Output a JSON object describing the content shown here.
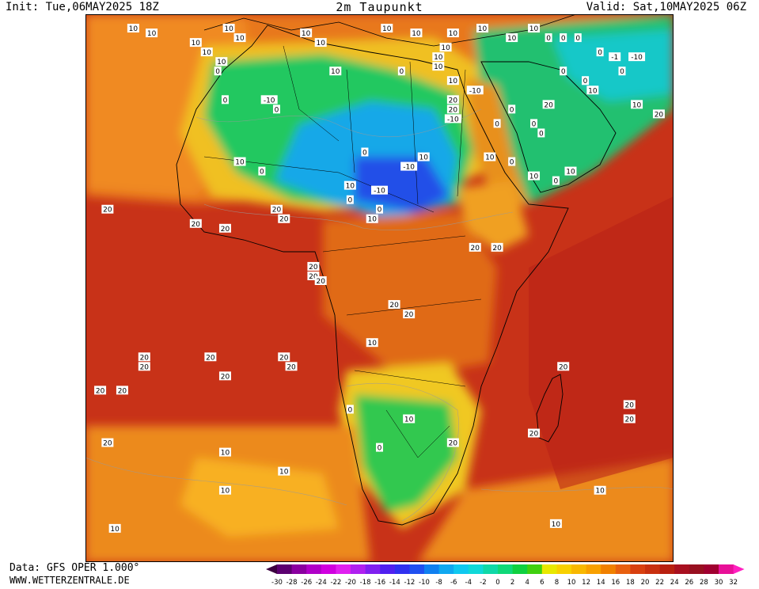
{
  "header": {
    "init": "Init: Tue,06MAY2025 18Z",
    "title": "2m Taupunkt",
    "valid": "Valid: Sat,10MAY2025 06Z"
  },
  "footer": {
    "data_source": "Data: GFS OPER 1.000°",
    "website": "WWW.WETTERZENTRALE.DE"
  },
  "legend": {
    "ticks": [
      "-30",
      "-28",
      "-26",
      "-24",
      "-22",
      "-20",
      "-18",
      "-16",
      "-14",
      "-12",
      "-10",
      "-8",
      "-6",
      "-4",
      "-2",
      "0",
      "2",
      "4",
      "6",
      "8",
      "10",
      "12",
      "14",
      "16",
      "18",
      "20",
      "22",
      "24",
      "26",
      "28",
      "30",
      "32"
    ],
    "colors": [
      "#3c0040",
      "#5c0070",
      "#8a00a0",
      "#b000c8",
      "#d000e0",
      "#e020f0",
      "#b020f0",
      "#8020f0",
      "#5020f0",
      "#3030f0",
      "#2050f0",
      "#1080f0",
      "#10a8f0",
      "#10c8f0",
      "#10d8d8",
      "#10d8a8",
      "#10d878",
      "#10d040",
      "#40d010",
      "#e8e800",
      "#f8d000",
      "#f8b800",
      "#f8a000",
      "#f08000",
      "#e86010",
      "#d84010",
      "#c83010",
      "#b82010",
      "#a81020",
      "#981020",
      "#a00030",
      "#e81098",
      "#ff20c0"
    ]
  },
  "map_labels": [
    {
      "t": "10",
      "lng": -13.5,
      "lat": 37
    },
    {
      "t": "10",
      "lng": -11,
      "lat": 36
    },
    {
      "t": "10",
      "lng": -5,
      "lat": 34
    },
    {
      "t": "10",
      "lng": -0.5,
      "lat": 37
    },
    {
      "t": "10",
      "lng": 1,
      "lat": 35
    },
    {
      "t": "10",
      "lng": -3.5,
      "lat": 32
    },
    {
      "t": "10",
      "lng": -1.5,
      "lat": 30
    },
    {
      "t": "0",
      "lng": -2,
      "lat": 28
    },
    {
      "t": "0",
      "lng": -1,
      "lat": 22
    },
    {
      "t": "-10",
      "lng": 5,
      "lat": 22
    },
    {
      "t": "0",
      "lng": 6,
      "lat": 20
    },
    {
      "t": "10",
      "lng": 14,
      "lat": 28
    },
    {
      "t": "0",
      "lng": 23,
      "lat": 28
    },
    {
      "t": "10",
      "lng": 10,
      "lat": 36
    },
    {
      "t": "10",
      "lng": 12,
      "lat": 34
    },
    {
      "t": "10",
      "lng": 21,
      "lat": 37
    },
    {
      "t": "10",
      "lng": 25,
      "lat": 36
    },
    {
      "t": "10",
      "lng": 34,
      "lat": 37
    },
    {
      "t": "10",
      "lng": 30,
      "lat": 36
    },
    {
      "t": "10",
      "lng": 29,
      "lat": 33
    },
    {
      "t": "10",
      "lng": 28,
      "lat": 31
    },
    {
      "t": "10",
      "lng": 28,
      "lat": 29
    },
    {
      "t": "10",
      "lng": 30,
      "lat": 26
    },
    {
      "t": "10",
      "lng": 38,
      "lat": 35
    },
    {
      "t": "10",
      "lng": 41,
      "lat": 37
    },
    {
      "t": "0",
      "lng": 43,
      "lat": 35
    },
    {
      "t": "0",
      "lng": 45,
      "lat": 35
    },
    {
      "t": "0",
      "lng": 47,
      "lat": 35
    },
    {
      "t": "0",
      "lng": 50,
      "lat": 32
    },
    {
      "t": "-1",
      "lng": 52,
      "lat": 31
    },
    {
      "t": "-10",
      "lng": 55,
      "lat": 31
    },
    {
      "t": "0",
      "lng": 53,
      "lat": 28
    },
    {
      "t": "0",
      "lng": 45,
      "lat": 28
    },
    {
      "t": "0",
      "lng": 48,
      "lat": 26
    },
    {
      "t": "10",
      "lng": 49,
      "lat": 24
    },
    {
      "t": "10",
      "lng": 55,
      "lat": 21
    },
    {
      "t": "20",
      "lng": 43,
      "lat": 21
    },
    {
      "t": "20",
      "lng": 58,
      "lat": 19
    },
    {
      "t": "-10",
      "lng": 33,
      "lat": 24
    },
    {
      "t": "20",
      "lng": 30,
      "lat": 22
    },
    {
      "t": "20",
      "lng": 30,
      "lat": 20
    },
    {
      "t": "-10",
      "lng": 30,
      "lat": 18
    },
    {
      "t": "0",
      "lng": 36,
      "lat": 17
    },
    {
      "t": "0",
      "lng": 38,
      "lat": 20
    },
    {
      "t": "0",
      "lng": 41,
      "lat": 17
    },
    {
      "t": "0",
      "lng": 42,
      "lat": 15
    },
    {
      "t": "0",
      "lng": 38,
      "lat": 9
    },
    {
      "t": "10",
      "lng": 35,
      "lat": 10
    },
    {
      "t": "10",
      "lng": 41,
      "lat": 6
    },
    {
      "t": "0",
      "lng": 44,
      "lat": 5
    },
    {
      "t": "10",
      "lng": 46,
      "lat": 7
    },
    {
      "t": "10",
      "lng": 26,
      "lat": 10
    },
    {
      "t": "0",
      "lng": 18,
      "lat": 11
    },
    {
      "t": "-10",
      "lng": 24,
      "lat": 8
    },
    {
      "t": "-10",
      "lng": 20,
      "lat": 3
    },
    {
      "t": "10",
      "lng": 16,
      "lat": 4
    },
    {
      "t": "0",
      "lng": 16,
      "lat": 1
    },
    {
      "t": "0",
      "lng": 20,
      "lat": -1
    },
    {
      "t": "10",
      "lng": 19,
      "lat": -3
    },
    {
      "t": "0",
      "lng": 4,
      "lat": 7
    },
    {
      "t": "10",
      "lng": 1,
      "lat": 9
    },
    {
      "t": "20",
      "lng": -17,
      "lat": -1
    },
    {
      "t": "20",
      "lng": 6,
      "lat": -1
    },
    {
      "t": "20",
      "lng": 7,
      "lat": -3
    },
    {
      "t": "20",
      "lng": -5,
      "lat": -4
    },
    {
      "t": "20",
      "lng": -1,
      "lat": -5
    },
    {
      "t": "20",
      "lng": 33,
      "lat": -9
    },
    {
      "t": "20",
      "lng": 36,
      "lat": -9
    },
    {
      "t": "20",
      "lng": 11,
      "lat": -13
    },
    {
      "t": "20",
      "lng": 11,
      "lat": -15
    },
    {
      "t": "20",
      "lng": 12,
      "lat": -16
    },
    {
      "t": "20",
      "lng": 22,
      "lat": -21
    },
    {
      "t": "20",
      "lng": 24,
      "lat": -23
    },
    {
      "t": "10",
      "lng": 19,
      "lat": -29
    },
    {
      "t": "20",
      "lng": -12,
      "lat": -32
    },
    {
      "t": "20",
      "lng": -3,
      "lat": -32
    },
    {
      "t": "20",
      "lng": -12,
      "lat": -34
    },
    {
      "t": "20",
      "lng": -1,
      "lat": -36
    },
    {
      "t": "20",
      "lng": -18,
      "lat": -39
    },
    {
      "t": "20",
      "lng": -15,
      "lat": -39
    },
    {
      "t": "20",
      "lng": 7,
      "lat": -32
    },
    {
      "t": "20",
      "lng": 8,
      "lat": -34
    },
    {
      "t": "20",
      "lng": 45,
      "lat": -34
    },
    {
      "t": "20",
      "lng": 54,
      "lat": -42
    },
    {
      "t": "20",
      "lng": 54,
      "lat": -45
    },
    {
      "t": "20",
      "lng": 41,
      "lat": -48
    },
    {
      "t": "20",
      "lng": 30,
      "lat": -50
    },
    {
      "t": "0",
      "lng": 16,
      "lat": -43
    },
    {
      "t": "10",
      "lng": 24,
      "lat": -45
    },
    {
      "t": "0",
      "lng": 20,
      "lat": -51
    },
    {
      "t": "20",
      "lng": -17,
      "lat": -50
    },
    {
      "t": "10",
      "lng": -1,
      "lat": -52
    },
    {
      "t": "10",
      "lng": 7,
      "lat": -56
    },
    {
      "t": "10",
      "lng": -1,
      "lat": -60
    },
    {
      "t": "10",
      "lng": 50,
      "lat": -60
    },
    {
      "t": "10",
      "lng": 44,
      "lat": -67
    },
    {
      "t": "10",
      "lng": -16,
      "lat": -68
    }
  ]
}
